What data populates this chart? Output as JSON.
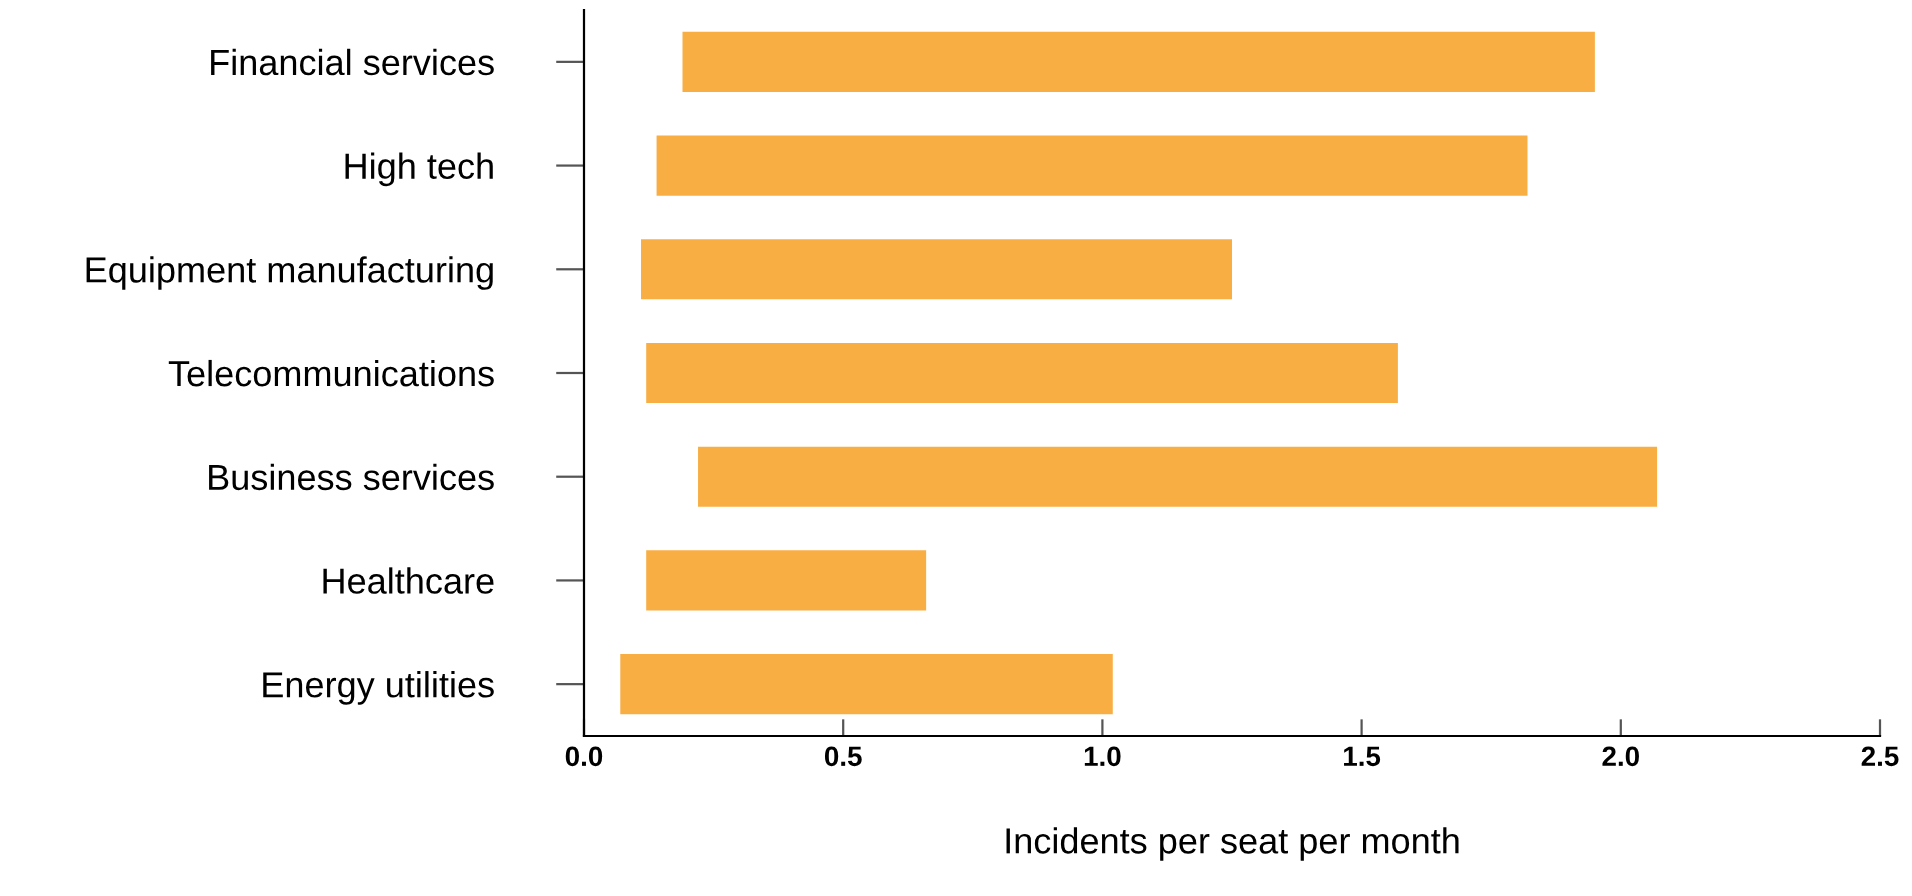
{
  "chart_data": {
    "type": "bar",
    "orientation": "horizontal",
    "xlabel": "Incidents per seat per month",
    "categories": [
      "Financial services",
      "High tech",
      "Equipment manufacturing",
      "Telecommunications",
      "Business services",
      "Healthcare",
      "Energy utilities"
    ],
    "base": [
      0.19,
      0.14,
      0.11,
      0.12,
      0.22,
      0.12,
      0.07
    ],
    "values": [
      1.76,
      1.68,
      1.14,
      1.45,
      1.85,
      0.54,
      0.95
    ],
    "color": "#f8ae42",
    "xlim": [
      0,
      2.5
    ],
    "xticks": [
      {
        "value": 0,
        "label": "0.0"
      },
      0.5,
      {
        "value": 1,
        "label": "1.0"
      },
      1.5,
      {
        "value": 2,
        "label": "2.0"
      },
      2.5
    ],
    "grid": false
  }
}
